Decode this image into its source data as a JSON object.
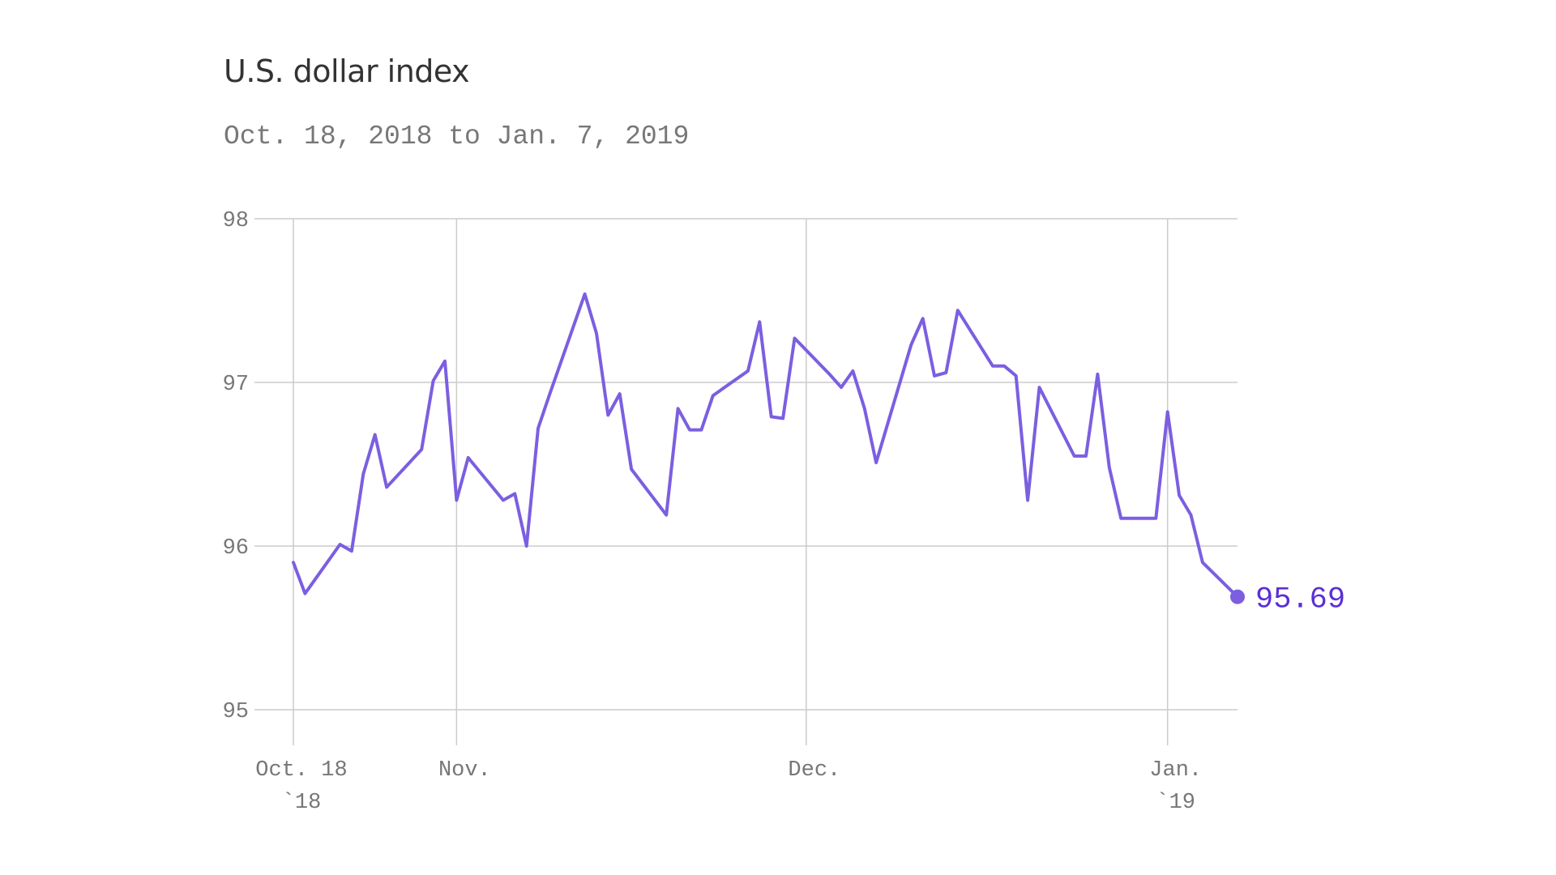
{
  "title": "U.S. dollar index",
  "subtitle": "Oct. 18, 2018 to Jan. 7, 2019",
  "chart_data": {
    "type": "line",
    "title": "U.S. dollar index",
    "subtitle": "Oct. 18, 2018 to Jan. 7, 2019",
    "xlabel": "",
    "ylabel": "",
    "ylim": [
      95,
      98
    ],
    "xlim": [
      "2018-10-18",
      "2019-01-07"
    ],
    "grid": true,
    "legend": "none",
    "line_color": "#7b5fe0",
    "end_label_color": "#5a2fd6",
    "y_ticks": [
      "95",
      "96",
      "97",
      "98"
    ],
    "x_ticks": [
      {
        "date": "2018-10-18",
        "label": "Oct. 18",
        "sublabel": "`18"
      },
      {
        "date": "2018-11-01",
        "label": "Nov.",
        "sublabel": ""
      },
      {
        "date": "2018-12-01",
        "label": "Dec.",
        "sublabel": ""
      },
      {
        "date": "2019-01-01",
        "label": "Jan.",
        "sublabel": "`19"
      }
    ],
    "end_label": "95.69",
    "series": [
      {
        "x": [
          "2018-10-18",
          "2018-10-19",
          "2018-10-22",
          "2018-10-23",
          "2018-10-24",
          "2018-10-25",
          "2018-10-26",
          "2018-10-29",
          "2018-10-30",
          "2018-10-31",
          "2018-11-01",
          "2018-11-02",
          "2018-11-05",
          "2018-11-06",
          "2018-11-07",
          "2018-11-08",
          "2018-11-09",
          "2018-11-12",
          "2018-11-13",
          "2018-11-14",
          "2018-11-15",
          "2018-11-16",
          "2018-11-19",
          "2018-11-20",
          "2018-11-21",
          "2018-11-22",
          "2018-11-23",
          "2018-11-26",
          "2018-11-27",
          "2018-11-28",
          "2018-11-29",
          "2018-11-30",
          "2018-12-03",
          "2018-12-04",
          "2018-12-05",
          "2018-12-06",
          "2018-12-07",
          "2018-12-10",
          "2018-12-11",
          "2018-12-12",
          "2018-12-13",
          "2018-12-14",
          "2018-12-17",
          "2018-12-18",
          "2018-12-19",
          "2018-12-20",
          "2018-12-21",
          "2018-12-24",
          "2018-12-25",
          "2018-12-26",
          "2018-12-27",
          "2018-12-28",
          "2018-12-31",
          "2019-01-01",
          "2019-01-02",
          "2019-01-03",
          "2019-01-04",
          "2019-01-07"
        ],
        "values": [
          95.9,
          95.71,
          96.01,
          95.97,
          96.44,
          96.68,
          96.36,
          96.59,
          97.01,
          97.13,
          96.28,
          96.54,
          96.28,
          96.32,
          96.0,
          96.72,
          96.93,
          97.54,
          97.3,
          96.8,
          96.93,
          96.47,
          96.19,
          96.84,
          96.71,
          96.71,
          96.92,
          97.07,
          97.37,
          96.79,
          96.78,
          97.27,
          97.05,
          96.97,
          97.07,
          96.84,
          96.51,
          97.23,
          97.39,
          97.04,
          97.06,
          97.44,
          97.1,
          97.1,
          97.04,
          96.28,
          96.97,
          96.55,
          96.55,
          97.05,
          96.48,
          96.17,
          96.17,
          96.82,
          96.31,
          96.19,
          95.9,
          95.69
        ]
      }
    ]
  }
}
